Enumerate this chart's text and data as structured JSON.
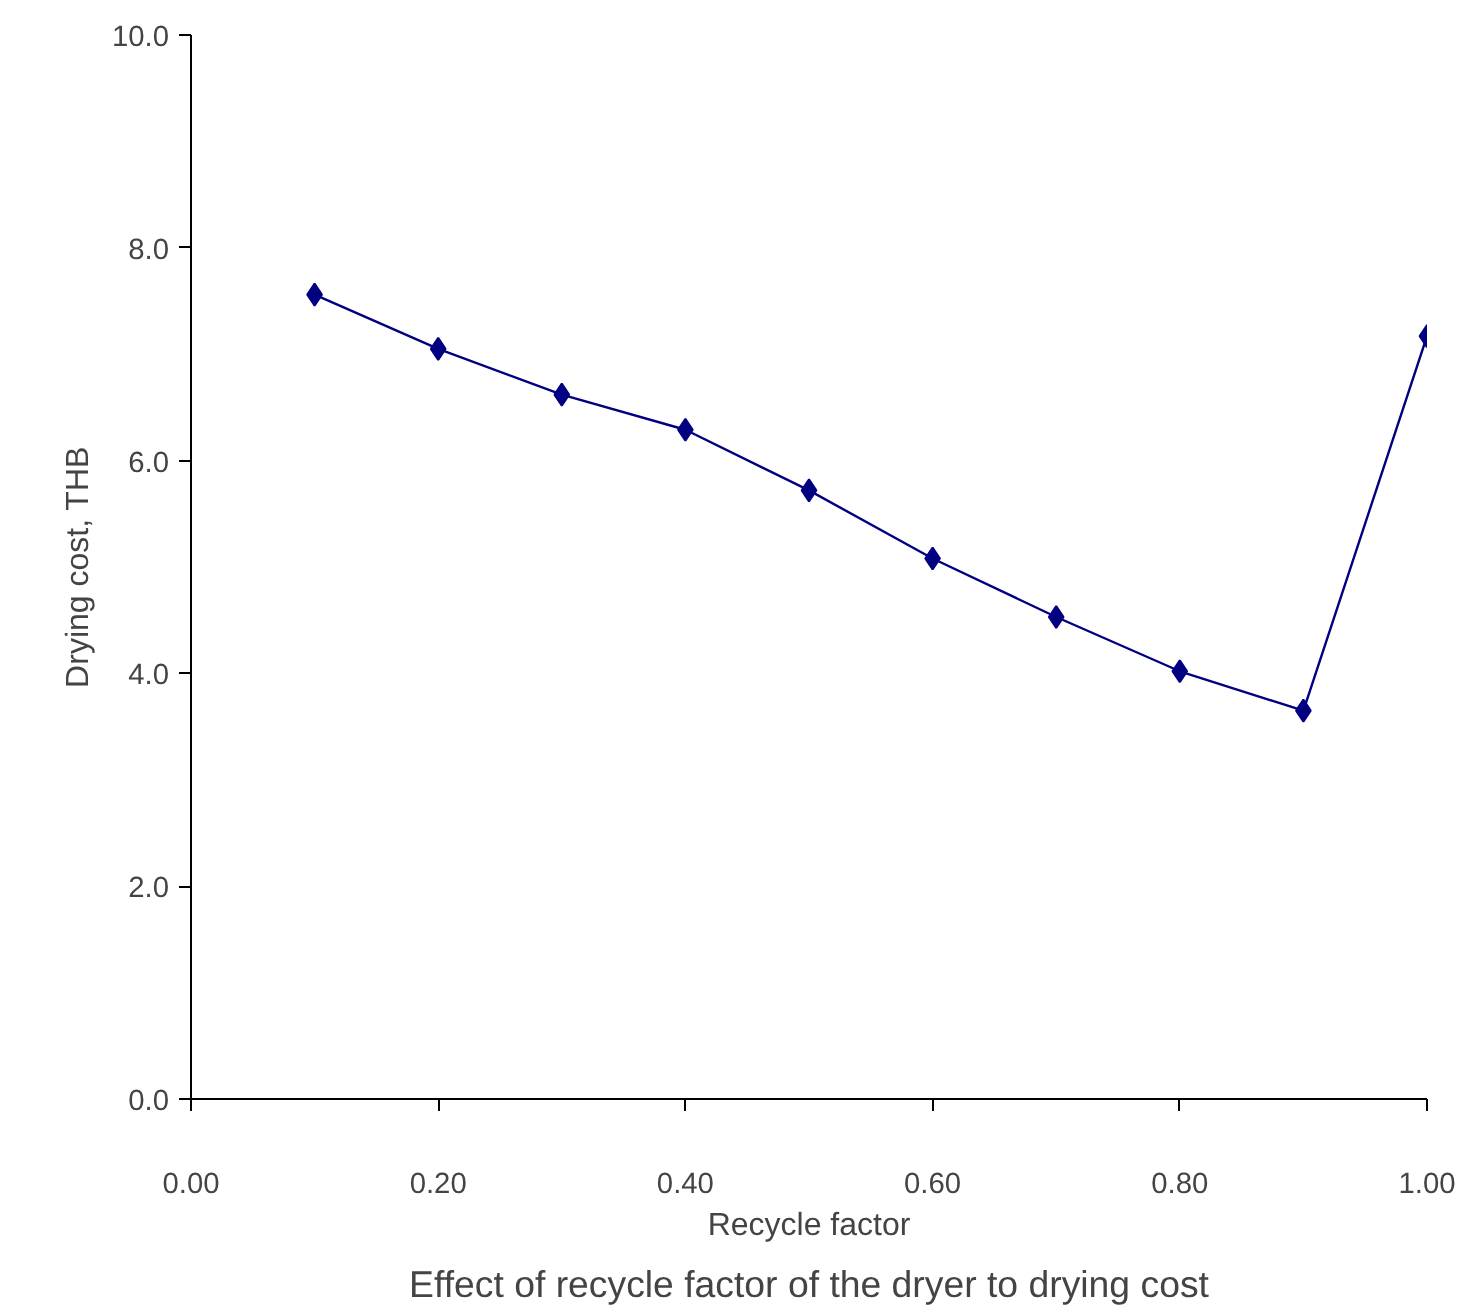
{
  "chart_data": {
    "type": "line",
    "xlabel": "Recycle factor",
    "ylabel": "Drying cost, THB",
    "annotations": [
      "Effect of recycle factor of the dryer to drying cost"
    ],
    "x": [
      0.1,
      0.2,
      0.3,
      0.4,
      0.5,
      0.6,
      0.7,
      0.8,
      0.9,
      1.0
    ],
    "series": [
      {
        "color": "#000080",
        "values": [
          7.56,
          7.05,
          6.62,
          6.29,
          5.72,
          5.08,
          4.53,
          4.02,
          3.65,
          7.17
        ]
      }
    ],
    "xlim": [
      0,
      1
    ],
    "ylim": [
      0,
      10
    ],
    "xticks": [
      {
        "value": 0,
        "label": "0.00"
      },
      {
        "value": 0.2,
        "label": "0.20"
      },
      {
        "value": 0.4,
        "label": "0.40"
      },
      {
        "value": 0.6,
        "label": "0.60"
      },
      {
        "value": 0.8,
        "label": "0.80"
      },
      {
        "value": 1,
        "label": "1.00"
      }
    ],
    "yticks": [
      {
        "value": 0,
        "label": "0.0"
      },
      {
        "value": 2,
        "label": "2.0"
      },
      {
        "value": 4,
        "label": "4.0"
      },
      {
        "value": 6,
        "label": "6.0"
      },
      {
        "value": 8,
        "label": "8.0"
      },
      {
        "value": 10,
        "label": "10.0"
      }
    ],
    "grid": false,
    "marker": "diamond",
    "line_style": "solid"
  }
}
